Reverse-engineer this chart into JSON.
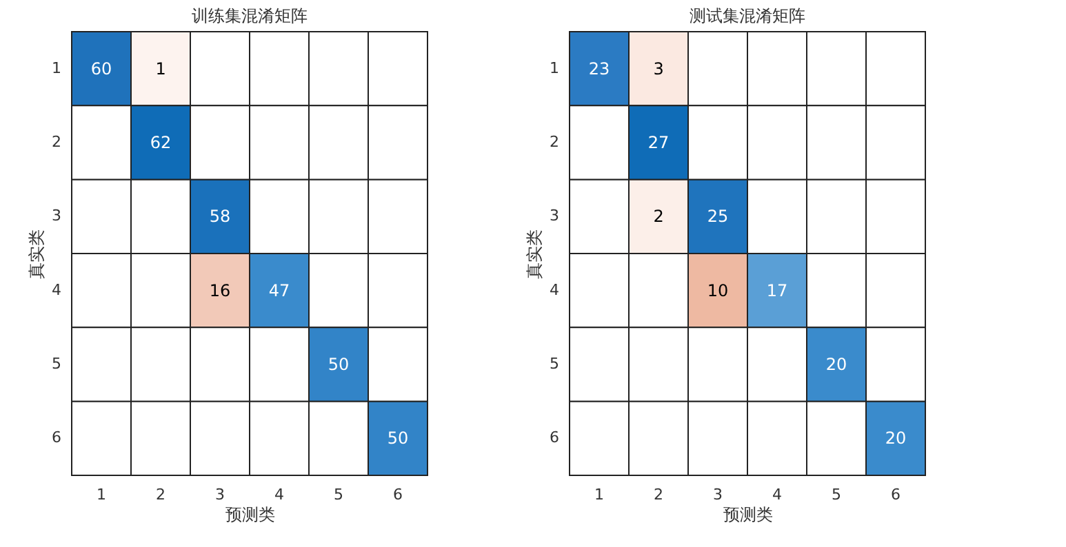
{
  "chart_data": [
    {
      "type": "heatmap",
      "title": "训练集混淆矩阵",
      "xlabel": "预测类",
      "ylabel": "真实类",
      "categories": [
        "1",
        "2",
        "3",
        "4",
        "5",
        "6"
      ],
      "y_categories": [
        "1",
        "2",
        "3",
        "4",
        "5",
        "6"
      ],
      "data_labels": true,
      "cells": [
        [
          60,
          1,
          null,
          null,
          null,
          null
        ],
        [
          null,
          62,
          null,
          null,
          null,
          null
        ],
        [
          null,
          null,
          58,
          null,
          null,
          null
        ],
        [
          null,
          null,
          16,
          47,
          null,
          null
        ],
        [
          null,
          null,
          null,
          null,
          50,
          null
        ],
        [
          null,
          null,
          null,
          null,
          null,
          50
        ]
      ],
      "colors": [
        [
          "#1f72bb",
          "#fdf3ef",
          null,
          null,
          null,
          null
        ],
        [
          null,
          "#0f6cb7",
          null,
          null,
          null,
          null
        ],
        [
          null,
          null,
          "#1a71bb",
          null,
          null,
          null
        ],
        [
          null,
          null,
          "#f2c9b8",
          "#3a8bcc",
          null,
          null
        ],
        [
          null,
          null,
          null,
          null,
          "#3284c8",
          null
        ],
        [
          null,
          null,
          null,
          null,
          null,
          "#3284c8"
        ]
      ]
    },
    {
      "type": "heatmap",
      "title": "测试集混淆矩阵",
      "xlabel": "预测类",
      "ylabel": "真实类",
      "categories": [
        "1",
        "2",
        "3",
        "4",
        "5",
        "6"
      ],
      "y_categories": [
        "1",
        "2",
        "3",
        "4",
        "5",
        "6"
      ],
      "data_labels": true,
      "cells": [
        [
          23,
          3,
          null,
          null,
          null,
          null
        ],
        [
          null,
          27,
          null,
          null,
          null,
          null
        ],
        [
          null,
          2,
          25,
          null,
          null,
          null
        ],
        [
          null,
          null,
          10,
          17,
          null,
          null
        ],
        [
          null,
          null,
          null,
          null,
          20,
          null
        ],
        [
          null,
          null,
          null,
          null,
          null,
          20
        ]
      ],
      "colors": [
        [
          "#2b7bc3",
          "#fbe9e1",
          null,
          null,
          null,
          null
        ],
        [
          null,
          "#0f6cb7",
          null,
          null,
          null,
          null
        ],
        [
          null,
          "#fcefe9",
          "#1f74bd",
          null,
          null,
          null
        ],
        [
          null,
          null,
          "#eeb9a2",
          "#5a9fd6",
          null,
          null
        ],
        [
          null,
          null,
          null,
          null,
          "#3a8bcc",
          null
        ],
        [
          null,
          null,
          null,
          null,
          null,
          "#3a8bcc"
        ]
      ]
    }
  ]
}
